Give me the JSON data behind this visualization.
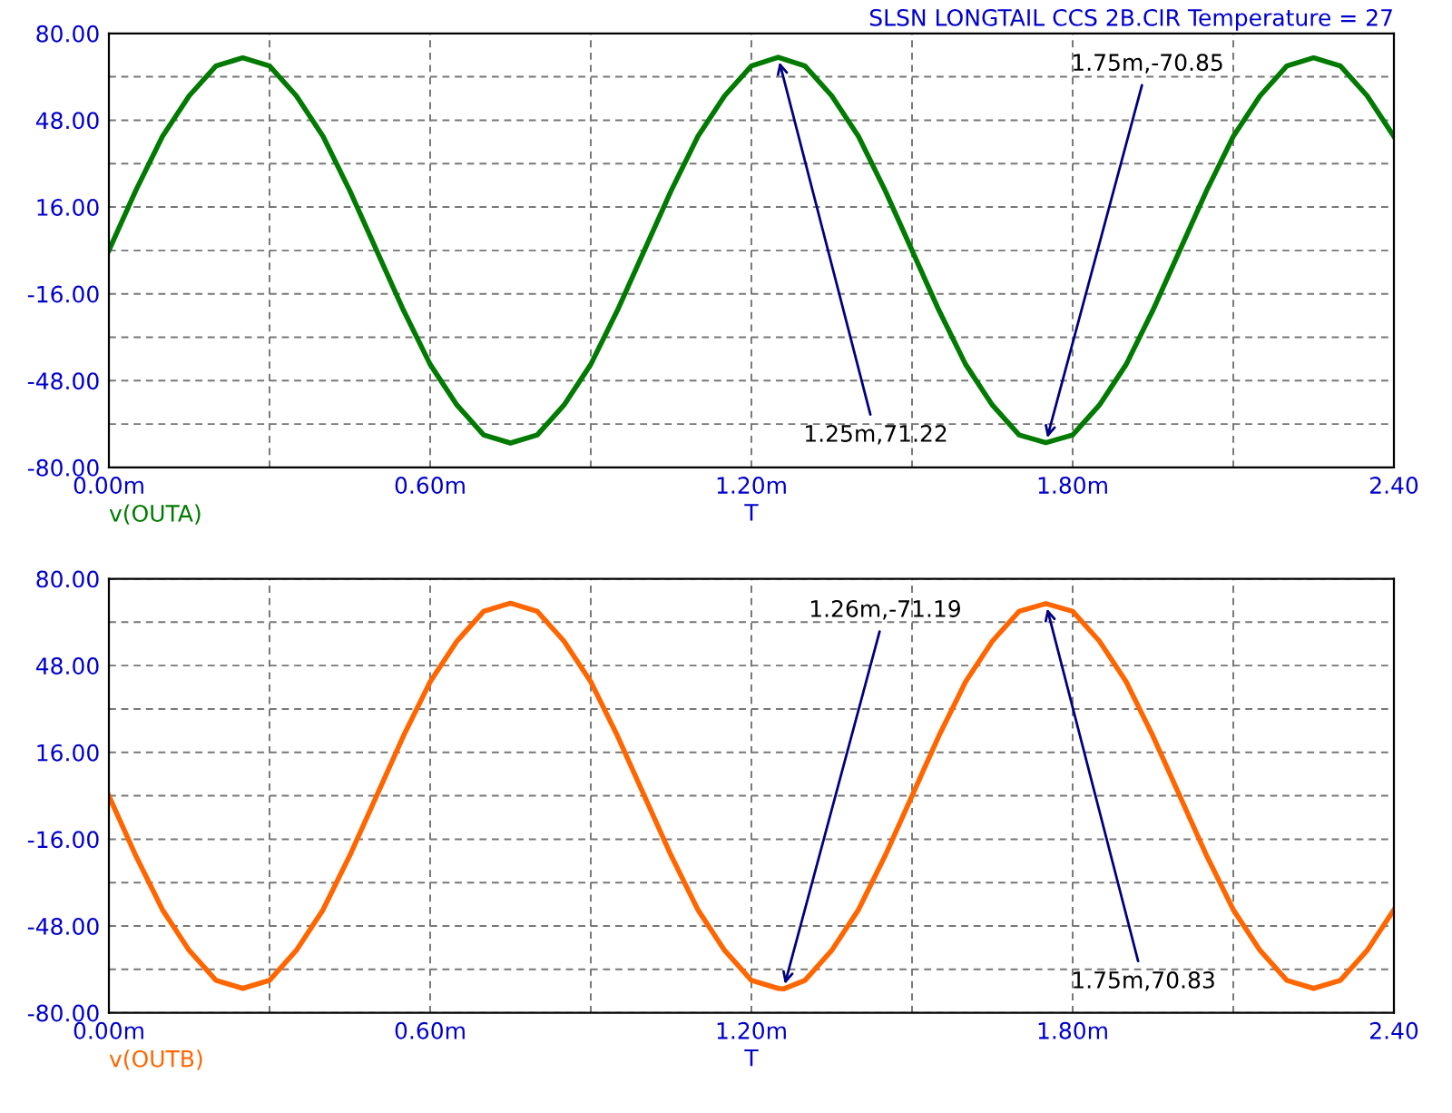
{
  "chart_data": [
    {
      "type": "line",
      "title": "SLSN LONGTAIL CCS 2B.CIR Temperature = 27",
      "xlabel": "T",
      "x": [
        0,
        0.05,
        0.1,
        0.15,
        0.2,
        0.25,
        0.3,
        0.35,
        0.4,
        0.45,
        0.5,
        0.55,
        0.6,
        0.65,
        0.7,
        0.75,
        0.8,
        0.85,
        0.9,
        0.95,
        1.0,
        1.05,
        1.1,
        1.15,
        1.2,
        1.25,
        1.3,
        1.35,
        1.4,
        1.45,
        1.5,
        1.55,
        1.6,
        1.65,
        1.7,
        1.75,
        1.8,
        1.85,
        1.9,
        1.95,
        2.0,
        2.05,
        2.1,
        2.15,
        2.2,
        2.25,
        2.3,
        2.35,
        2.4
      ],
      "series": [
        {
          "name": "v(OUTA)",
          "color": "#007a00",
          "values": [
            0,
            22,
            42,
            57,
            68,
            71,
            68,
            57,
            42,
            22,
            0,
            -22,
            -42,
            -57,
            -68,
            -71,
            -68,
            -57,
            -42,
            -22,
            0,
            22,
            42,
            57,
            68,
            71.22,
            68,
            57,
            42,
            22,
            0,
            -22,
            -42,
            -57,
            -68,
            -70.85,
            -68,
            -57,
            -42,
            -22,
            0,
            22,
            42,
            57,
            68,
            71,
            68,
            57,
            42
          ]
        }
      ],
      "xlim": [
        0,
        2.4
      ],
      "ylim": [
        -80,
        80
      ],
      "xticks": [
        {
          "value": 0,
          "label": "0.00m"
        },
        {
          "value": 0.3,
          "label": null
        },
        {
          "value": 0.6,
          "label": "0.60m"
        },
        {
          "value": 0.9,
          "label": null
        },
        {
          "value": 1.2,
          "label": "1.20m"
        },
        {
          "value": 1.5,
          "label": null
        },
        {
          "value": 1.8,
          "label": "1.80m"
        },
        {
          "value": 2.1,
          "label": null
        },
        {
          "value": 2.4,
          "label": "2.40"
        }
      ],
      "yticks": [
        {
          "value": -80,
          "label": "-80.00"
        },
        {
          "value": -64,
          "label": null
        },
        {
          "value": -48,
          "label": "-48.00"
        },
        {
          "value": -32,
          "label": null
        },
        {
          "value": -16,
          "label": "-16.00"
        },
        {
          "value": 0,
          "label": null
        },
        {
          "value": 16,
          "label": "16.00"
        },
        {
          "value": 32,
          "label": null
        },
        {
          "value": 48,
          "label": "48.00"
        },
        {
          "value": 64,
          "label": null
        },
        {
          "value": 80,
          "label": "80.00"
        }
      ],
      "grid": true,
      "annotations": [
        {
          "text": "1.25m,71.22",
          "x": 1.25,
          "y": 71.22
        },
        {
          "text": "1.75m,-70.85",
          "x": 1.75,
          "y": -70.85
        }
      ]
    },
    {
      "type": "line",
      "xlabel": "T",
      "x": [
        0,
        0.05,
        0.1,
        0.15,
        0.2,
        0.25,
        0.3,
        0.35,
        0.4,
        0.45,
        0.5,
        0.55,
        0.6,
        0.65,
        0.7,
        0.75,
        0.8,
        0.85,
        0.9,
        0.95,
        1.0,
        1.05,
        1.1,
        1.15,
        1.2,
        1.25,
        1.26,
        1.3,
        1.35,
        1.4,
        1.45,
        1.5,
        1.55,
        1.6,
        1.65,
        1.7,
        1.75,
        1.8,
        1.85,
        1.9,
        1.95,
        2.0,
        2.05,
        2.1,
        2.15,
        2.2,
        2.25,
        2.3,
        2.35,
        2.4
      ],
      "series": [
        {
          "name": "v(OUTB)",
          "color": "#ff6600",
          "values": [
            0,
            -22,
            -42,
            -57,
            -68,
            -71,
            -68,
            -57,
            -42,
            -22,
            0,
            22,
            42,
            57,
            68,
            71,
            68,
            57,
            42,
            22,
            0,
            -22,
            -42,
            -57,
            -68,
            -71,
            -71.19,
            -68,
            -57,
            -42,
            -22,
            0,
            22,
            42,
            57,
            68,
            70.83,
            68,
            57,
            42,
            22,
            0,
            -22,
            -42,
            -57,
            -68,
            -71,
            -68,
            -57,
            -42
          ]
        }
      ],
      "xlim": [
        0,
        2.4
      ],
      "ylim": [
        -80,
        80
      ],
      "xticks": [
        {
          "value": 0,
          "label": "0.00m"
        },
        {
          "value": 0.3,
          "label": null
        },
        {
          "value": 0.6,
          "label": "0.60m"
        },
        {
          "value": 0.9,
          "label": null
        },
        {
          "value": 1.2,
          "label": "1.20m"
        },
        {
          "value": 1.5,
          "label": null
        },
        {
          "value": 1.8,
          "label": "1.80m"
        },
        {
          "value": 2.1,
          "label": null
        },
        {
          "value": 2.4,
          "label": "2.40"
        }
      ],
      "yticks": [
        {
          "value": -80,
          "label": "-80.00"
        },
        {
          "value": -64,
          "label": null
        },
        {
          "value": -48,
          "label": "-48.00"
        },
        {
          "value": -32,
          "label": null
        },
        {
          "value": -16,
          "label": "-16.00"
        },
        {
          "value": 0,
          "label": null
        },
        {
          "value": 16,
          "label": "16.00"
        },
        {
          "value": 32,
          "label": null
        },
        {
          "value": 48,
          "label": "48.00"
        },
        {
          "value": 64,
          "label": null
        },
        {
          "value": 80,
          "label": "80.00"
        }
      ],
      "grid": true,
      "annotations": [
        {
          "text": "1.26m,-71.19",
          "x": 1.26,
          "y": -71.19
        },
        {
          "text": "1.75m,70.83",
          "x": 1.75,
          "y": 70.83
        }
      ]
    }
  ]
}
